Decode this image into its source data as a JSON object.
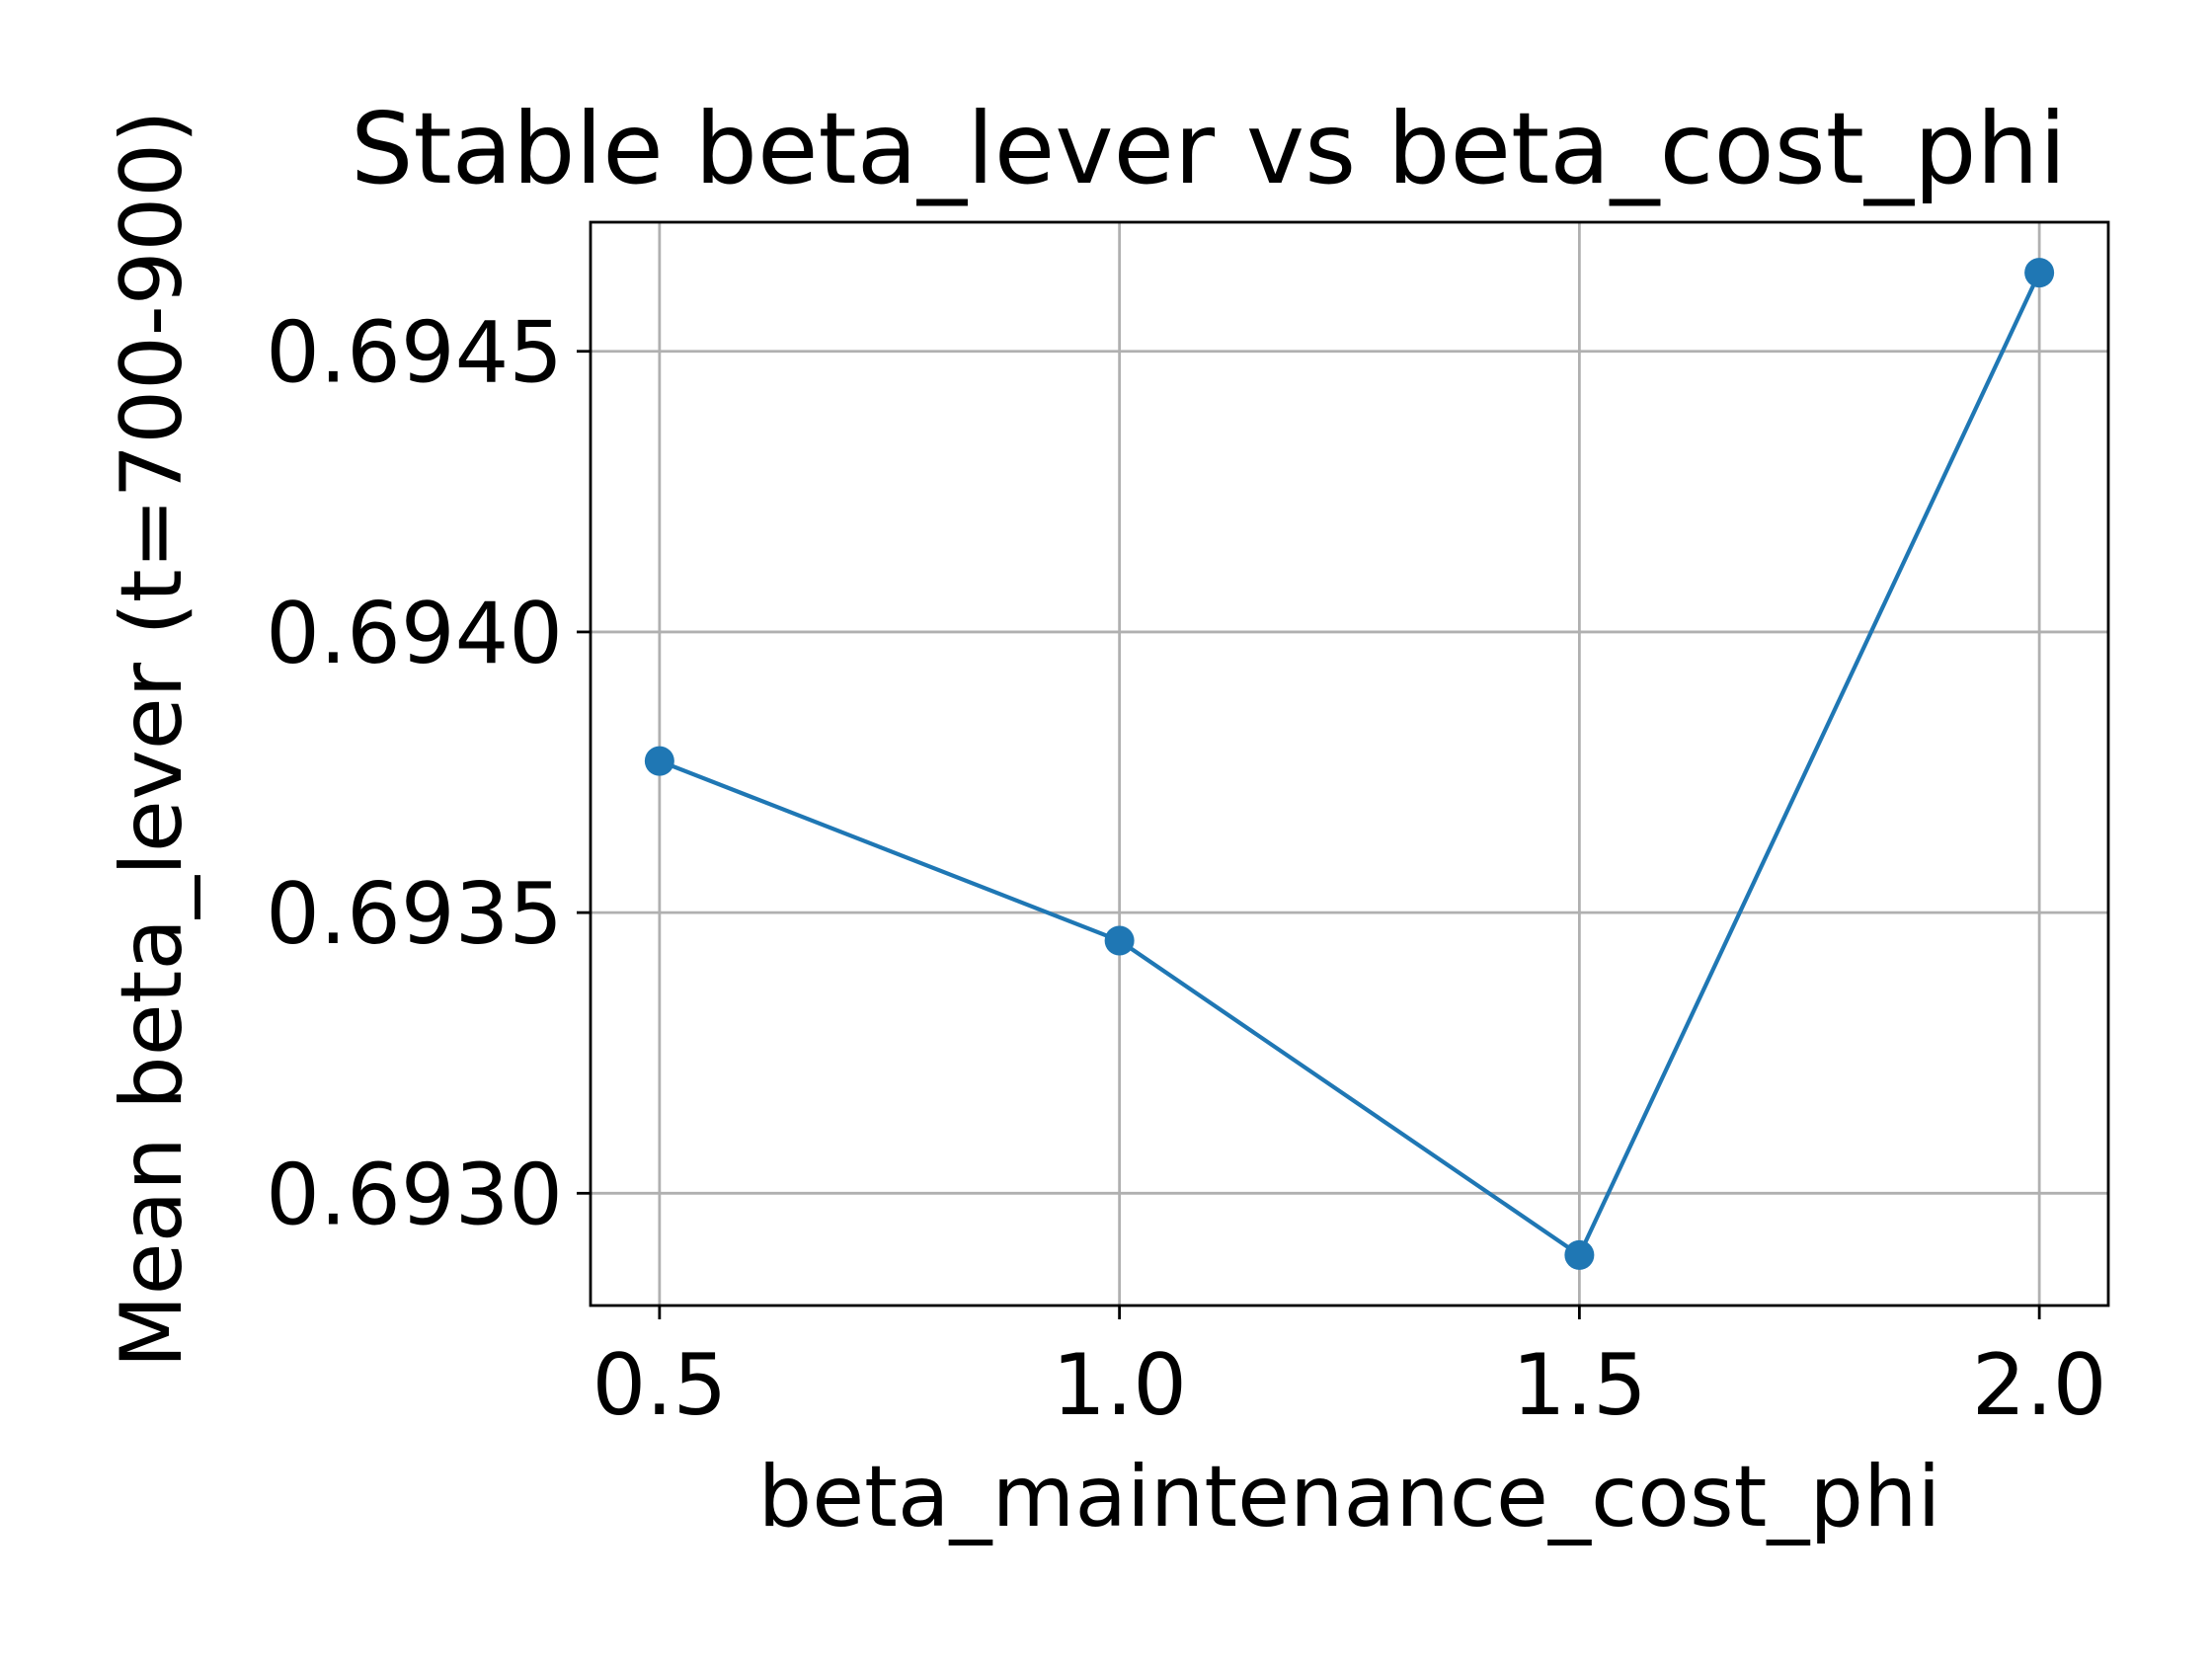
{
  "chart_data": {
    "type": "line",
    "title": "Stable beta_lever vs beta_cost_phi",
    "xlabel": "beta_maintenance_cost_phi",
    "ylabel": "Mean beta_lever (t=700-900)",
    "xlim": [
      0.425,
      2.075
    ],
    "ylim": [
      0.6928,
      0.69473
    ],
    "x": [
      0.5,
      1.0,
      1.5,
      2.0
    ],
    "series": [
      {
        "values": [
          0.69377,
          0.69345,
          0.69289,
          0.69464
        ]
      }
    ],
    "xticks": [
      0.5,
      1.0,
      1.5,
      2.0
    ],
    "xtick_labels": [
      "0.5",
      "1.0",
      "1.5",
      "2.0"
    ],
    "yticks": [
      0.693,
      0.6935,
      0.694,
      0.6945
    ],
    "ytick_labels": [
      "0.6930",
      "0.6935",
      "0.6940",
      "0.6945"
    ],
    "grid": true,
    "line_color": "#1f77b4",
    "grid_color": "#b0b0b0"
  }
}
